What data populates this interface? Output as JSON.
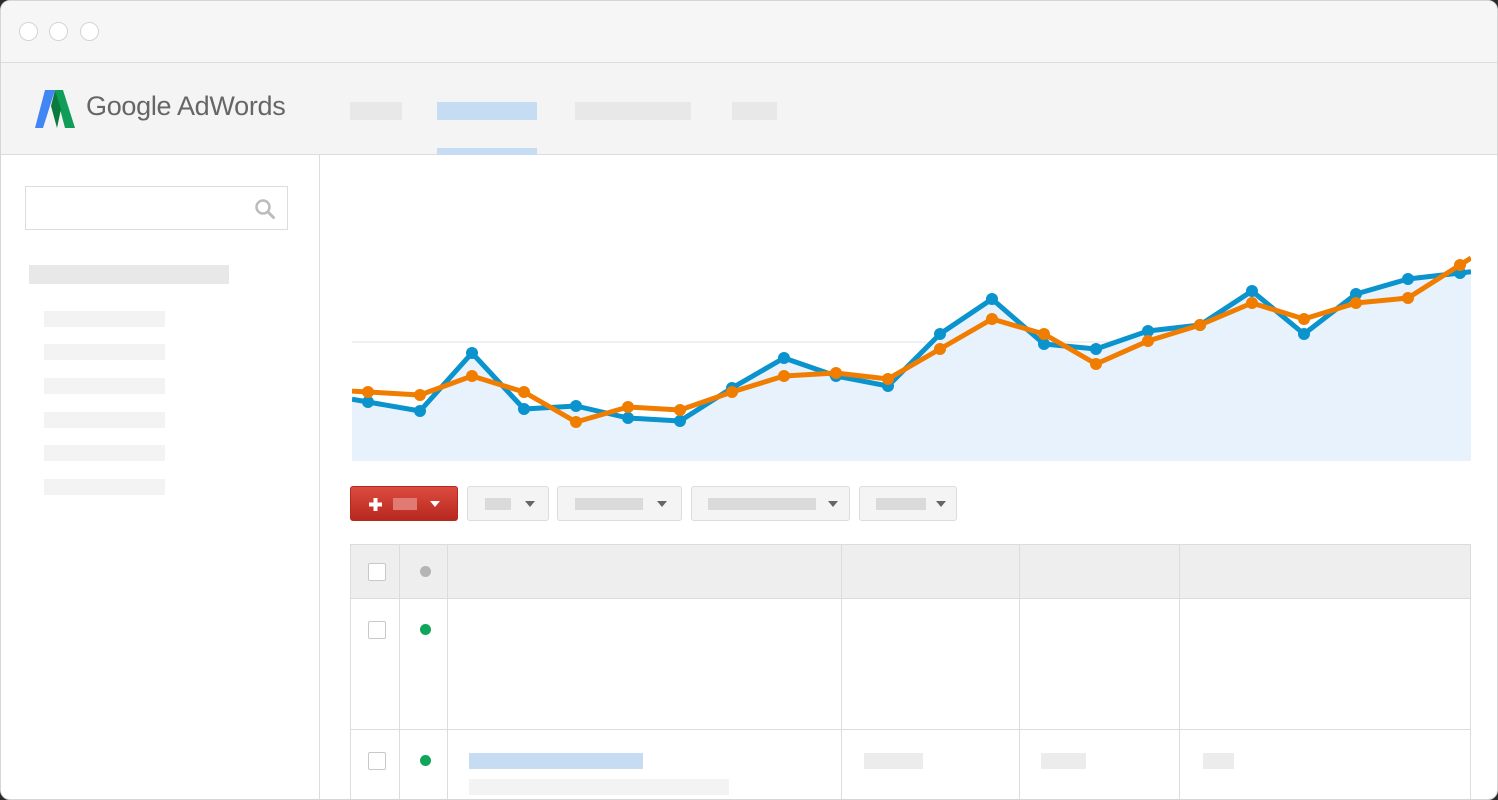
{
  "app": {
    "brand_name": "Google AdWords"
  },
  "colors": {
    "brand_blue": "#4285f4",
    "brand_green": "#0f9d58",
    "series_blue": "#0a93cc",
    "series_orange": "#f07d00",
    "area_fill": "#e8f2fd",
    "add_button_red": "#c83429",
    "status_enabled": "#0fa55a",
    "status_header": "#b4b4b4",
    "nav_active": "#c6dcf3"
  },
  "icons": {
    "search": "search-icon",
    "add": "plus-icon",
    "dropdown": "caret-down-icon"
  },
  "nav": {
    "active_index": 1,
    "tab_count": 4
  },
  "table": {
    "rows": [
      {
        "status": "enabled",
        "checked": false
      },
      {
        "status": "enabled",
        "checked": false
      }
    ]
  },
  "chart_data": {
    "type": "line",
    "title": "",
    "xlabel": "",
    "ylabel": "",
    "grid": true,
    "ylim": [
      0,
      300
    ],
    "x": [
      0,
      1,
      2,
      3,
      4,
      5,
      6,
      7,
      8,
      9,
      10,
      11,
      12,
      13,
      14,
      15,
      16,
      17,
      18,
      19,
      20,
      21
    ],
    "series": [
      {
        "color": "#0a93cc",
        "fill": true,
        "values": [
          59,
          50,
          108,
          52,
          55,
          43,
          40,
          73,
          103,
          85,
          75,
          127,
          162,
          117,
          112,
          130,
          136,
          170,
          127,
          167,
          182,
          188
        ]
      },
      {
        "color": "#f07d00",
        "fill": false,
        "values": [
          69,
          66,
          85,
          69,
          39,
          54,
          51,
          69,
          85,
          88,
          82,
          112,
          142,
          127,
          97,
          120,
          136,
          158,
          142,
          158,
          163,
          196
        ]
      }
    ]
  }
}
